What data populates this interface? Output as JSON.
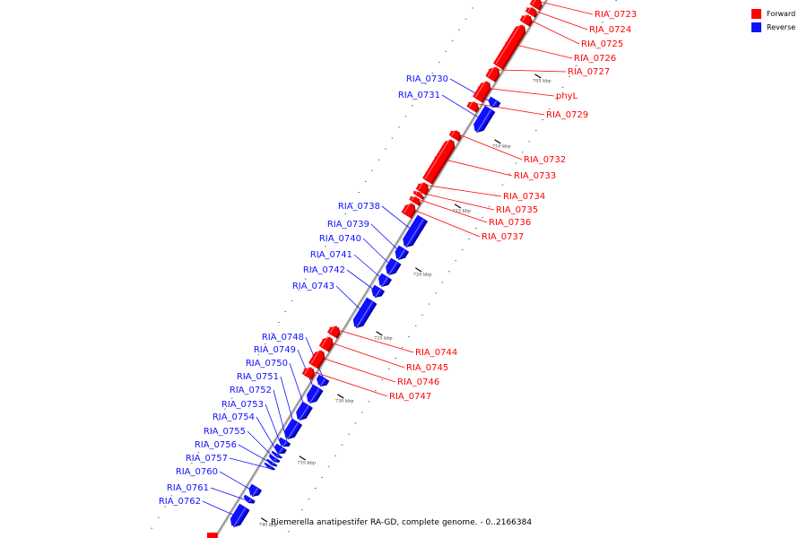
{
  "legend": {
    "forward_label": "Forward",
    "reverse_label": "Reverse",
    "forward_color": "#ff0000",
    "reverse_color": "#1010ff"
  },
  "caption": "Riemerella anatipestifer RA-GD, complete genome. - 0..2166384",
  "colors": {
    "forward": "#ff0000",
    "forward_dark": "#b00000",
    "forward_light": "#ff8080",
    "reverse": "#1010ff",
    "reverse_dark": "#0000a8",
    "reverse_light": "#8080ff",
    "backbone": "#9a9a9a"
  },
  "scale_ticks_kbp": [
    {
      "label": "705 kbp",
      "pos": 705
    },
    {
      "label": "710 kbp",
      "pos": 710
    },
    {
      "label": "715 kbp",
      "pos": 715
    },
    {
      "label": "720 kbp",
      "pos": 720
    },
    {
      "label": "725 kbp",
      "pos": 725
    },
    {
      "label": "730 kbp",
      "pos": 730
    },
    {
      "label": "735 kbp",
      "pos": 735
    },
    {
      "label": "740 kbp",
      "pos": 740
    }
  ],
  "genes_forward": [
    {
      "name": "RIA_0723"
    },
    {
      "name": "RIA_0724"
    },
    {
      "name": "RIA_0725"
    },
    {
      "name": "RIA_0726"
    },
    {
      "name": "RIA_0727"
    },
    {
      "name": "phyL"
    },
    {
      "name": "RIA_0729"
    },
    {
      "name": "RIA_0732"
    },
    {
      "name": "RIA_0733"
    },
    {
      "name": "RIA_0734"
    },
    {
      "name": "RIA_0735"
    },
    {
      "name": "RIA_0736"
    },
    {
      "name": "RIA_0737"
    },
    {
      "name": "RIA_0744"
    },
    {
      "name": "RIA_0745"
    },
    {
      "name": "RIA_0746"
    },
    {
      "name": "RIA_0747"
    }
  ],
  "genes_reverse": [
    {
      "name": "RIA_0730"
    },
    {
      "name": "RIA_0731"
    },
    {
      "name": "RIA_0738"
    },
    {
      "name": "RIA_0739"
    },
    {
      "name": "RIA_0740"
    },
    {
      "name": "RIA_0741"
    },
    {
      "name": "RIA_0742"
    },
    {
      "name": "RIA_0743"
    },
    {
      "name": "RIA_0748"
    },
    {
      "name": "RIA_0749"
    },
    {
      "name": "RIA_0750"
    },
    {
      "name": "RIA_0751"
    },
    {
      "name": "RIA_0752"
    },
    {
      "name": "RIA_0753"
    },
    {
      "name": "RIA_0754"
    },
    {
      "name": "RIA_0755"
    },
    {
      "name": "RIA_0756"
    },
    {
      "name": "RIA_0757"
    },
    {
      "name": "RIA_0760"
    },
    {
      "name": "RIA_0761"
    },
    {
      "name": "RIA_0762"
    }
  ]
}
